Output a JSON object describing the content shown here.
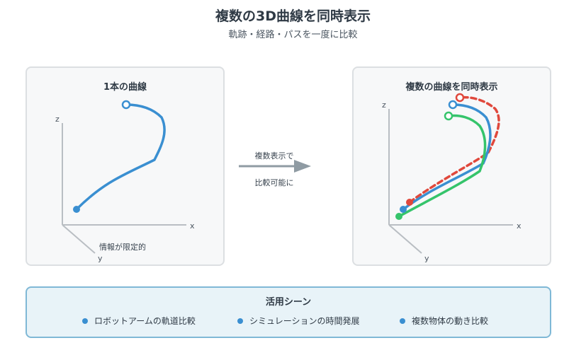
{
  "header": {
    "title": "複数の3D曲線を同時表示",
    "subtitle": "軌跡・経路・パスを一度に比較"
  },
  "left_panel": {
    "title": "1本の曲線",
    "axes": {
      "x": "x",
      "y": "y",
      "z": "z"
    },
    "note": "情報が限定的",
    "curve_color": "#3a8fd1"
  },
  "middle": {
    "line1": "複数表示で",
    "line2": "比較可能に",
    "arrow_color": "#8f9ba3"
  },
  "right_panel": {
    "title": "複数の曲線を同時表示",
    "axes": {
      "x": "x",
      "y": "y",
      "z": "z"
    },
    "curve_colors": {
      "blue": "#3a8fd1",
      "red": "#e0483c",
      "green": "#35c46b"
    }
  },
  "uses": {
    "title": "活用シーン",
    "items": [
      "ロボットアームの軌道比較",
      "シミュレーションの時間発展",
      "複数物体の動き比較"
    ],
    "bullet_color": "#3a8fd1"
  }
}
